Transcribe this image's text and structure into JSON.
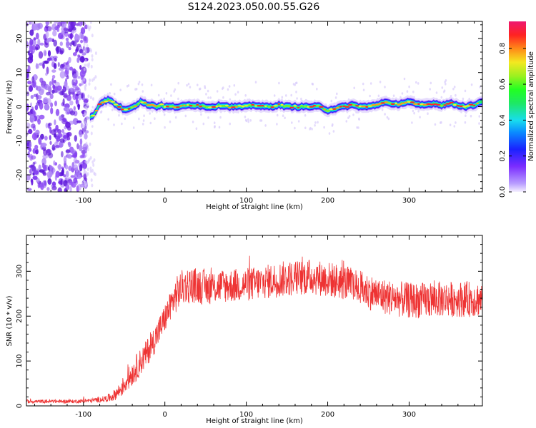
{
  "title": "S124.2023.050.00.55.G26",
  "chart_data": [
    {
      "type": "heatmap",
      "xlabel": "Height of straight line (km)",
      "ylabel": "Frequency (Hz)",
      "xlim": [
        -170,
        390
      ],
      "ylim": [
        -25,
        25
      ],
      "x_ticks": [
        -100,
        0,
        100,
        200,
        300
      ],
      "y_ticks": [
        -20,
        -10,
        0,
        10,
        20
      ],
      "noise_region_x": [
        -170,
        -95
      ],
      "ridge": {
        "x": [
          -92,
          -88,
          -84,
          -80,
          -75,
          -70,
          -65,
          -60,
          -55,
          -50,
          -45,
          -40,
          -35,
          -30,
          -25,
          -20,
          -15,
          -10,
          -5,
          0,
          10,
          20,
          30,
          40,
          50,
          60,
          70,
          80,
          90,
          100,
          110,
          120,
          130,
          140,
          150,
          160,
          170,
          180,
          190,
          200,
          210,
          220,
          230,
          240,
          250,
          260,
          270,
          280,
          290,
          300,
          310,
          320,
          330,
          340,
          350,
          360,
          370,
          380,
          388
        ],
        "freq": [
          -3,
          -2.5,
          -1,
          1,
          1.5,
          2,
          1.5,
          0.5,
          0,
          -1,
          -0.5,
          0,
          0.5,
          1.5,
          1,
          0.5,
          0.5,
          0,
          0.5,
          0,
          0,
          0,
          0.5,
          0.5,
          0,
          0,
          0.5,
          0,
          0,
          0,
          0.5,
          0,
          0,
          0.5,
          0,
          0,
          0,
          0,
          0,
          -1,
          -0.5,
          0,
          0.5,
          0,
          0,
          0.5,
          1.5,
          0.5,
          1,
          1.5,
          0.5,
          0.5,
          1,
          0.5,
          1,
          0.5,
          0,
          0.5,
          1.5
        ]
      },
      "colorbar": {
        "label": "Normalized spectral amplitude",
        "ticks": [
          0.0,
          0.2,
          0.4,
          0.6,
          0.8
        ],
        "range": [
          0,
          0.95
        ]
      }
    },
    {
      "type": "line",
      "xlabel": "Height of straight line (km)",
      "ylabel": "SNR (10 * v/v)",
      "xlim": [
        -170,
        390
      ],
      "ylim": [
        0,
        380
      ],
      "x_ticks": [
        -100,
        0,
        100,
        200,
        300
      ],
      "y_ticks": [
        0,
        100,
        200,
        300
      ],
      "series": [
        {
          "color": "#ee3333",
          "x": [
            -170,
            -140,
            -110,
            -90,
            -75,
            -65,
            -55,
            -45,
            -35,
            -25,
            -15,
            -5,
            0,
            5,
            10,
            15,
            20,
            25,
            30,
            40,
            50,
            60,
            70,
            80,
            100,
            120,
            140,
            160,
            180,
            200,
            220,
            240,
            260,
            280,
            300,
            320,
            340,
            360,
            380,
            388
          ],
          "mean": [
            10,
            10,
            10,
            12,
            15,
            20,
            35,
            60,
            85,
            110,
            140,
            175,
            195,
            215,
            235,
            250,
            262,
            268,
            270,
            268,
            265,
            265,
            268,
            268,
            270,
            275,
            282,
            285,
            288,
            282,
            275,
            262,
            248,
            240,
            235,
            235,
            238,
            238,
            238,
            238
          ],
          "spread": [
            4,
            4,
            4,
            5,
            7,
            10,
            18,
            25,
            30,
            30,
            32,
            32,
            32,
            32,
            35,
            40,
            40,
            40,
            40,
            40,
            40,
            38,
            38,
            38,
            38,
            38,
            40,
            40,
            40,
            40,
            40,
            40,
            40,
            40,
            40,
            40,
            40,
            40,
            40,
            40
          ]
        }
      ]
    }
  ]
}
